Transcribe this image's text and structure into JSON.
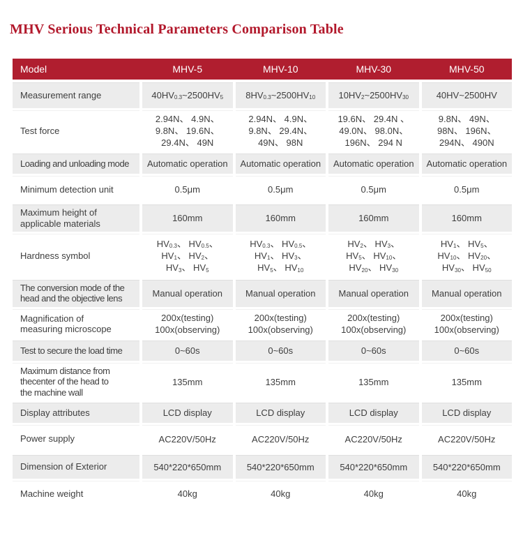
{
  "title": "MHV Serious Technical Parameters Comparison Table",
  "colors": {
    "title_red": "#b2182b",
    "header_bg": "#b01e2f",
    "header_text": "#ffffff",
    "row_alt_gray": "#ececec",
    "body_text": "#3e3e3e"
  },
  "table": {
    "header": [
      "Model",
      "MHV-5",
      "MHV-10",
      "MHV-30",
      "MHV-50"
    ],
    "rows": [
      {
        "label": "Measurement range",
        "values": [
          "40HV_{0.3}~2500HV_{5}",
          "8HV_{0.3}~2500HV_{10}",
          "10HV_{2}~2500HV_{30}",
          "40HV~2500HV"
        ]
      },
      {
        "label": "Test force",
        "values": [
          "2.94N、 4.9N、\n9.8N、 19.6N、\n29.4N、 49N",
          "2.94N、 4.9N、\n9.8N、 29.4N、\n49N、 98N",
          "19.6N、 29.4N 、\n49.0N、 98.0N、\n196N、 294 N",
          "9.8N、 49N、\n98N、 196N、\n294N、 490N"
        ]
      },
      {
        "label": "Loading and unloading mode",
        "values": [
          "Automatic operation",
          "Automatic operation",
          "Automatic operation",
          "Automatic operation"
        ]
      },
      {
        "label": "Minimum detection unit",
        "values": [
          "0.5μm",
          "0.5μm",
          "0.5μm",
          "0.5μm"
        ]
      },
      {
        "label": "Maximum height of\napplicable materials",
        "values": [
          "160mm",
          "160mm",
          "160mm",
          "160mm"
        ]
      },
      {
        "label": "Hardness symbol",
        "values": [
          "HV_{0.3}、 HV_{0.5}、\nHV_{1}、 HV_{2}、\nHV_{3}、 HV_{5}",
          "HV_{0.3}、 HV_{0.5}、\nHV_{1}、 HV_{3}、\nHV_{5}、 HV_{10}",
          "HV_{2}、 HV_{3}、\nHV_{5}、 HV_{10}、\nHV_{20}、 HV_{30}",
          "HV_{1}、 HV_{5}、\nHV_{10}、 HV_{20}、\nHV_{30}、 HV_{50}"
        ]
      },
      {
        "label": "The conversion mode of the\nhead and the objective lens",
        "values": [
          "Manual operation",
          "Manual operation",
          "Manual operation",
          "Manual operation"
        ]
      },
      {
        "label": "Magnification of\nmeasuring microscope",
        "values": [
          "200x(testing)\n100x(observing)",
          "200x(testing)\n100x(observing)",
          "200x(testing)\n100x(observing)",
          "200x(testing)\n100x(observing)"
        ]
      },
      {
        "label": "Test to secure the load time",
        "values": [
          "0~60s",
          "0~60s",
          "0~60s",
          "0~60s"
        ]
      },
      {
        "label": "Maximum distance from\nthecenter of the head to\nthe machine wall",
        "values": [
          "135mm",
          "135mm",
          "135mm",
          "135mm"
        ]
      },
      {
        "label": "Display attributes",
        "values": [
          "LCD display",
          "LCD display",
          "LCD display",
          "LCD display"
        ]
      },
      {
        "label": "Power supply",
        "values": [
          "AC220V/50Hz",
          "AC220V/50Hz",
          "AC220V/50Hz",
          "AC220V/50Hz"
        ]
      },
      {
        "label": "Dimension of Exterior",
        "values": [
          "540*220*650mm",
          "540*220*650mm",
          "540*220*650mm",
          "540*220*650mm"
        ]
      },
      {
        "label": "Machine weight",
        "values": [
          "40kg",
          "40kg",
          "40kg",
          "40kg"
        ]
      }
    ]
  }
}
